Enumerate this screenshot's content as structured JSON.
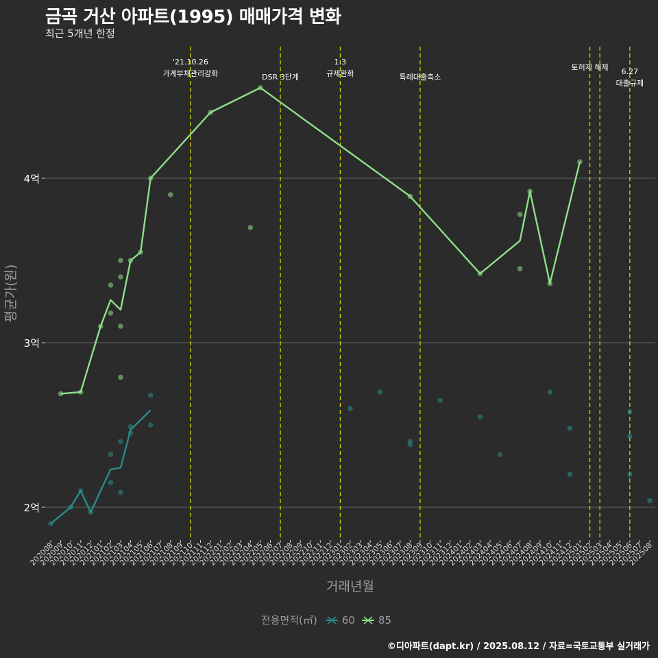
{
  "header": {
    "title": "금곡 거산 아파트(1995) 매매가격 변화",
    "subtitle": "최근 5개년 한정"
  },
  "caption": "©디아파트(dapt.kr) / 2025.08.12 / 자료=국토교통부 실거래가",
  "legend": {
    "title": "전용면적(㎡)",
    "items": [
      {
        "label": "60",
        "color": "#2a8c8a"
      },
      {
        "label": "85",
        "color": "#8ee08a"
      }
    ]
  },
  "chart_data": {
    "type": "line",
    "xlabel": "거래년월",
    "ylabel": "평균가(원)",
    "ylim": [
      1.8,
      4.8
    ],
    "yticks": [
      {
        "value": 2,
        "label": "2억"
      },
      {
        "value": 3,
        "label": "3억"
      },
      {
        "value": 4,
        "label": "4억"
      }
    ],
    "x": [
      "202008",
      "202009",
      "202010",
      "202011",
      "202012",
      "202101",
      "202102",
      "202103",
      "202104",
      "202105",
      "202106",
      "202107",
      "202108",
      "202109",
      "202110",
      "202111",
      "202112",
      "202201",
      "202202",
      "202203",
      "202204",
      "202205",
      "202206",
      "202207",
      "202208",
      "202209",
      "202210",
      "202211",
      "202212",
      "202301",
      "202302",
      "202303",
      "202304",
      "202305",
      "202306",
      "202307",
      "202308",
      "202309",
      "202310",
      "202311",
      "202312",
      "202401",
      "202402",
      "202403",
      "202404",
      "202405",
      "202406",
      "202407",
      "202408",
      "202409",
      "202410",
      "202411",
      "202412",
      "202501",
      "202502",
      "202503",
      "202504",
      "202505",
      "202506",
      "202507",
      "202508"
    ],
    "grid": true,
    "legend_position": "bottom",
    "series": [
      {
        "name": "60",
        "color": "#2a8c8a",
        "line": [
          [
            "202008",
            1.9
          ],
          [
            "202010",
            2.0
          ],
          [
            "202011",
            2.1
          ],
          [
            "202012",
            1.97
          ],
          [
            "202102",
            2.23
          ],
          [
            "202103",
            2.24
          ],
          [
            "202104",
            2.47
          ],
          [
            "202106",
            2.59
          ]
        ],
        "points": [
          [
            "202008",
            1.9
          ],
          [
            "202010",
            2.0
          ],
          [
            "202011",
            2.1
          ],
          [
            "202012",
            1.97
          ],
          [
            "202102",
            2.15
          ],
          [
            "202102",
            2.32
          ],
          [
            "202103",
            2.09
          ],
          [
            "202103",
            2.4
          ],
          [
            "202104",
            2.45
          ],
          [
            "202104",
            2.49
          ],
          [
            "202106",
            2.5
          ],
          [
            "202106",
            2.68
          ],
          [
            "202302",
            2.6
          ],
          [
            "202305",
            2.7
          ],
          [
            "202308",
            2.4
          ],
          [
            "202308",
            2.38
          ],
          [
            "202311",
            2.65
          ],
          [
            "202403",
            2.55
          ],
          [
            "202405",
            2.32
          ],
          [
            "202410",
            2.7
          ],
          [
            "202412",
            2.2
          ],
          [
            "202412",
            2.48
          ],
          [
            "202506",
            2.58
          ],
          [
            "202506",
            2.43
          ],
          [
            "202506",
            2.2
          ],
          [
            "202508",
            2.04
          ]
        ]
      },
      {
        "name": "85",
        "color": "#8ee08a",
        "line": [
          [
            "202009",
            2.69
          ],
          [
            "202011",
            2.7
          ],
          [
            "202101",
            3.1
          ],
          [
            "202102",
            3.26
          ],
          [
            "202103",
            3.2
          ],
          [
            "202104",
            3.5
          ],
          [
            "202105",
            3.55
          ],
          [
            "202106",
            4.0
          ],
          [
            "202112",
            4.4
          ],
          [
            "202205",
            4.55
          ],
          [
            "202308",
            3.89
          ],
          [
            "202403",
            3.42
          ],
          [
            "202407",
            3.62
          ],
          [
            "202408",
            3.92
          ],
          [
            "202410",
            3.36
          ],
          [
            "202501",
            4.1
          ]
        ],
        "points": [
          [
            "202009",
            2.69
          ],
          [
            "202011",
            2.7
          ],
          [
            "202101",
            3.1
          ],
          [
            "202102",
            3.35
          ],
          [
            "202102",
            3.18
          ],
          [
            "202103",
            3.5
          ],
          [
            "202103",
            3.4
          ],
          [
            "202103",
            3.1
          ],
          [
            "202103",
            2.79
          ],
          [
            "202104",
            3.5
          ],
          [
            "202105",
            3.55
          ],
          [
            "202106",
            4.0
          ],
          [
            "202108",
            3.9
          ],
          [
            "202112",
            4.4
          ],
          [
            "202204",
            3.7
          ],
          [
            "202205",
            4.55
          ],
          [
            "202308",
            3.89
          ],
          [
            "202403",
            3.42
          ],
          [
            "202407",
            3.78
          ],
          [
            "202407",
            3.45
          ],
          [
            "202408",
            3.92
          ],
          [
            "202410",
            3.36
          ],
          [
            "202501",
            4.1
          ]
        ]
      }
    ],
    "annotations": [
      {
        "x": "202110",
        "lines": [
          "'21.10.26",
          "가계부채관리강화"
        ],
        "level": 0
      },
      {
        "x": "202207",
        "lines": [
          "DSR 3단계"
        ],
        "level": 1
      },
      {
        "x": "202301",
        "lines": [
          "1.3",
          "규제완화"
        ],
        "level": 0
      },
      {
        "x": "202309",
        "lines": [
          "특례대출축소"
        ],
        "level": 1
      },
      {
        "x": "202502",
        "lines": [
          "토허제 해제"
        ],
        "level": 0
      },
      {
        "x": "202503",
        "lines": [],
        "level": 0
      },
      {
        "x": "202506",
        "lines": [
          "6.27",
          "대출규제"
        ],
        "level": 1
      }
    ]
  }
}
